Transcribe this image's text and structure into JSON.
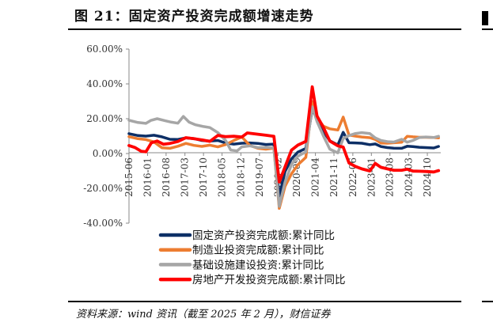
{
  "figure": {
    "title": "图 21：固定资产投资完成额增速走势",
    "source": "资料来源：wind 资讯（截至 2025 年 2 月），财信证券"
  },
  "chart_data": {
    "type": "line",
    "ylim": [
      -40,
      60
    ],
    "y_ticks": [
      "60.00%",
      "40.00%",
      "20.00%",
      "0.00%",
      "-20.00%",
      "-40.00%"
    ],
    "y_tick_values": [
      60,
      40,
      20,
      0,
      -20,
      -40
    ],
    "x_range": [
      2015.42,
      2025.17
    ],
    "x_tick_labels": [
      "2015-06",
      "2016-01",
      "2016-08",
      "2017-03",
      "2017-10",
      "2018-05",
      "2018-12",
      "2019-07",
      "2020-02",
      "2020-09",
      "2021-04",
      "2021-11",
      "2022-06",
      "2023-01",
      "2023-08",
      "2024-03",
      "2024-10"
    ],
    "x_tick_values": [
      2015.42,
      2016.0,
      2016.58,
      2017.17,
      2017.75,
      2018.33,
      2018.92,
      2019.5,
      2020.08,
      2020.67,
      2021.25,
      2021.83,
      2022.42,
      2023.0,
      2023.58,
      2024.17,
      2024.75
    ],
    "grid": false,
    "legend_position": "bottom",
    "series": [
      {
        "name": "固定资产投资完成额:累计同比",
        "color": "#0d2f66",
        "width": 3.5,
        "points": [
          [
            2015.42,
            11.4
          ],
          [
            2015.7,
            10.3
          ],
          [
            2015.95,
            10.0
          ],
          [
            2016.2,
            10.5
          ],
          [
            2016.45,
            9.6
          ],
          [
            2016.7,
            8.2
          ],
          [
            2016.95,
            8.1
          ],
          [
            2017.2,
            9.0
          ],
          [
            2017.45,
            8.6
          ],
          [
            2017.7,
            7.5
          ],
          [
            2017.95,
            7.2
          ],
          [
            2018.2,
            7.5
          ],
          [
            2018.45,
            6.0
          ],
          [
            2018.7,
            5.4
          ],
          [
            2018.95,
            5.9
          ],
          [
            2019.2,
            6.1
          ],
          [
            2019.45,
            5.8
          ],
          [
            2019.7,
            5.2
          ],
          [
            2019.95,
            5.4
          ],
          [
            2020.12,
            -24.5
          ],
          [
            2020.3,
            -10.3
          ],
          [
            2020.5,
            -3.1
          ],
          [
            2020.7,
            0.8
          ],
          [
            2020.95,
            2.9
          ],
          [
            2021.15,
            25.6
          ],
          [
            2021.3,
            19.9
          ],
          [
            2021.5,
            12.6
          ],
          [
            2021.7,
            7.3
          ],
          [
            2021.95,
            4.9
          ],
          [
            2022.12,
            12.2
          ],
          [
            2022.3,
            6.2
          ],
          [
            2022.5,
            6.1
          ],
          [
            2022.7,
            5.9
          ],
          [
            2022.95,
            5.1
          ],
          [
            2023.12,
            5.5
          ],
          [
            2023.3,
            4.0
          ],
          [
            2023.5,
            3.4
          ],
          [
            2023.7,
            3.1
          ],
          [
            2023.95,
            3.0
          ],
          [
            2024.12,
            4.2
          ],
          [
            2024.3,
            4.0
          ],
          [
            2024.5,
            3.6
          ],
          [
            2024.7,
            3.4
          ],
          [
            2024.95,
            3.2
          ],
          [
            2025.1,
            4.1
          ]
        ]
      },
      {
        "name": "制造业投资完成额:累计同比",
        "color": "#ed7d31",
        "width": 3.5,
        "points": [
          [
            2015.42,
            9.7
          ],
          [
            2015.7,
            8.5
          ],
          [
            2015.95,
            8.0
          ],
          [
            2016.2,
            6.7
          ],
          [
            2016.45,
            3.3
          ],
          [
            2016.7,
            3.0
          ],
          [
            2016.95,
            4.2
          ],
          [
            2017.2,
            5.8
          ],
          [
            2017.45,
            4.7
          ],
          [
            2017.7,
            4.1
          ],
          [
            2017.95,
            4.8
          ],
          [
            2018.2,
            3.8
          ],
          [
            2018.45,
            5.2
          ],
          [
            2018.7,
            7.5
          ],
          [
            2018.95,
            9.5
          ],
          [
            2019.2,
            4.6
          ],
          [
            2019.45,
            3.0
          ],
          [
            2019.7,
            2.5
          ],
          [
            2019.95,
            3.1
          ],
          [
            2020.12,
            -31.5
          ],
          [
            2020.3,
            -18.8
          ],
          [
            2020.5,
            -11.7
          ],
          [
            2020.7,
            -6.5
          ],
          [
            2020.95,
            -2.2
          ],
          [
            2021.15,
            29.8
          ],
          [
            2021.3,
            20.4
          ],
          [
            2021.5,
            15.7
          ],
          [
            2021.7,
            14.2
          ],
          [
            2021.95,
            13.5
          ],
          [
            2022.12,
            20.9
          ],
          [
            2022.3,
            10.6
          ],
          [
            2022.5,
            10.0
          ],
          [
            2022.7,
            9.5
          ],
          [
            2022.95,
            9.1
          ],
          [
            2023.12,
            8.1
          ],
          [
            2023.3,
            6.0
          ],
          [
            2023.5,
            5.9
          ],
          [
            2023.7,
            6.2
          ],
          [
            2023.95,
            6.5
          ],
          [
            2024.12,
            9.9
          ],
          [
            2024.3,
            9.6
          ],
          [
            2024.5,
            9.3
          ],
          [
            2024.7,
            9.3
          ],
          [
            2024.95,
            9.2
          ],
          [
            2025.1,
            9.0
          ]
        ]
      },
      {
        "name": "基础设施建设投资:累计同比",
        "color": "#a6a6a6",
        "width": 3.5,
        "points": [
          [
            2015.42,
            19.1
          ],
          [
            2015.7,
            17.8
          ],
          [
            2015.95,
            17.3
          ],
          [
            2016.1,
            19.0
          ],
          [
            2016.3,
            20.0
          ],
          [
            2016.55,
            18.8
          ],
          [
            2016.75,
            18.0
          ],
          [
            2016.95,
            17.4
          ],
          [
            2017.12,
            21.3
          ],
          [
            2017.3,
            18.0
          ],
          [
            2017.5,
            16.5
          ],
          [
            2017.75,
            15.5
          ],
          [
            2017.95,
            14.9
          ],
          [
            2018.2,
            12.0
          ],
          [
            2018.45,
            7.3
          ],
          [
            2018.6,
            2.0
          ],
          [
            2018.8,
            1.5
          ],
          [
            2018.95,
            3.8
          ],
          [
            2019.2,
            4.4
          ],
          [
            2019.45,
            3.4
          ],
          [
            2019.7,
            3.5
          ],
          [
            2019.95,
            3.3
          ],
          [
            2020.12,
            -30.3
          ],
          [
            2020.3,
            -16.4
          ],
          [
            2020.5,
            -6.3
          ],
          [
            2020.7,
            -1.5
          ],
          [
            2020.95,
            0.9
          ],
          [
            2021.15,
            26.8
          ],
          [
            2021.3,
            18.4
          ],
          [
            2021.5,
            10.1
          ],
          [
            2021.7,
            2.5
          ],
          [
            2021.95,
            0.4
          ],
          [
            2022.12,
            8.6
          ],
          [
            2022.3,
            10.3
          ],
          [
            2022.5,
            11.5
          ],
          [
            2022.7,
            12.0
          ],
          [
            2022.95,
            11.5
          ],
          [
            2023.12,
            9.0
          ],
          [
            2023.3,
            7.5
          ],
          [
            2023.5,
            6.8
          ],
          [
            2023.7,
            6.6
          ],
          [
            2023.95,
            8.2
          ],
          [
            2024.12,
            6.5
          ],
          [
            2024.3,
            7.5
          ],
          [
            2024.5,
            9.2
          ],
          [
            2024.7,
            9.5
          ],
          [
            2024.95,
            9.2
          ],
          [
            2025.1,
            9.9
          ]
        ]
      },
      {
        "name": "房地产开发投资完成额:累计同比",
        "color": "#ff0000",
        "width": 3.8,
        "points": [
          [
            2015.42,
            4.6
          ],
          [
            2015.6,
            3.5
          ],
          [
            2015.8,
            1.3
          ],
          [
            2015.95,
            1.0
          ],
          [
            2016.12,
            6.2
          ],
          [
            2016.3,
            7.2
          ],
          [
            2016.5,
            5.3
          ],
          [
            2016.7,
            5.8
          ],
          [
            2016.95,
            6.9
          ],
          [
            2017.2,
            9.1
          ],
          [
            2017.45,
            8.5
          ],
          [
            2017.7,
            7.8
          ],
          [
            2017.95,
            7.0
          ],
          [
            2018.2,
            10.4
          ],
          [
            2018.45,
            9.7
          ],
          [
            2018.7,
            9.9
          ],
          [
            2018.95,
            9.5
          ],
          [
            2019.12,
            11.8
          ],
          [
            2019.4,
            11.2
          ],
          [
            2019.7,
            10.5
          ],
          [
            2019.95,
            9.9
          ],
          [
            2020.12,
            -16.3
          ],
          [
            2020.3,
            -7.7
          ],
          [
            2020.5,
            1.9
          ],
          [
            2020.7,
            4.8
          ],
          [
            2020.95,
            7.0
          ],
          [
            2021.15,
            38.3
          ],
          [
            2021.3,
            21.6
          ],
          [
            2021.5,
            15.0
          ],
          [
            2021.7,
            7.2
          ],
          [
            2021.95,
            4.4
          ],
          [
            2022.12,
            3.7
          ],
          [
            2022.3,
            -5.4
          ],
          [
            2022.5,
            -7.4
          ],
          [
            2022.7,
            -8.8
          ],
          [
            2022.95,
            -10.0
          ],
          [
            2023.12,
            -5.7
          ],
          [
            2023.3,
            -7.9
          ],
          [
            2023.5,
            -8.8
          ],
          [
            2023.7,
            -9.6
          ],
          [
            2023.95,
            -9.6
          ],
          [
            2024.12,
            -9.0
          ],
          [
            2024.3,
            -10.1
          ],
          [
            2024.5,
            -10.2
          ],
          [
            2024.7,
            -10.3
          ],
          [
            2024.95,
            -10.6
          ],
          [
            2025.1,
            -9.8
          ]
        ]
      }
    ]
  }
}
